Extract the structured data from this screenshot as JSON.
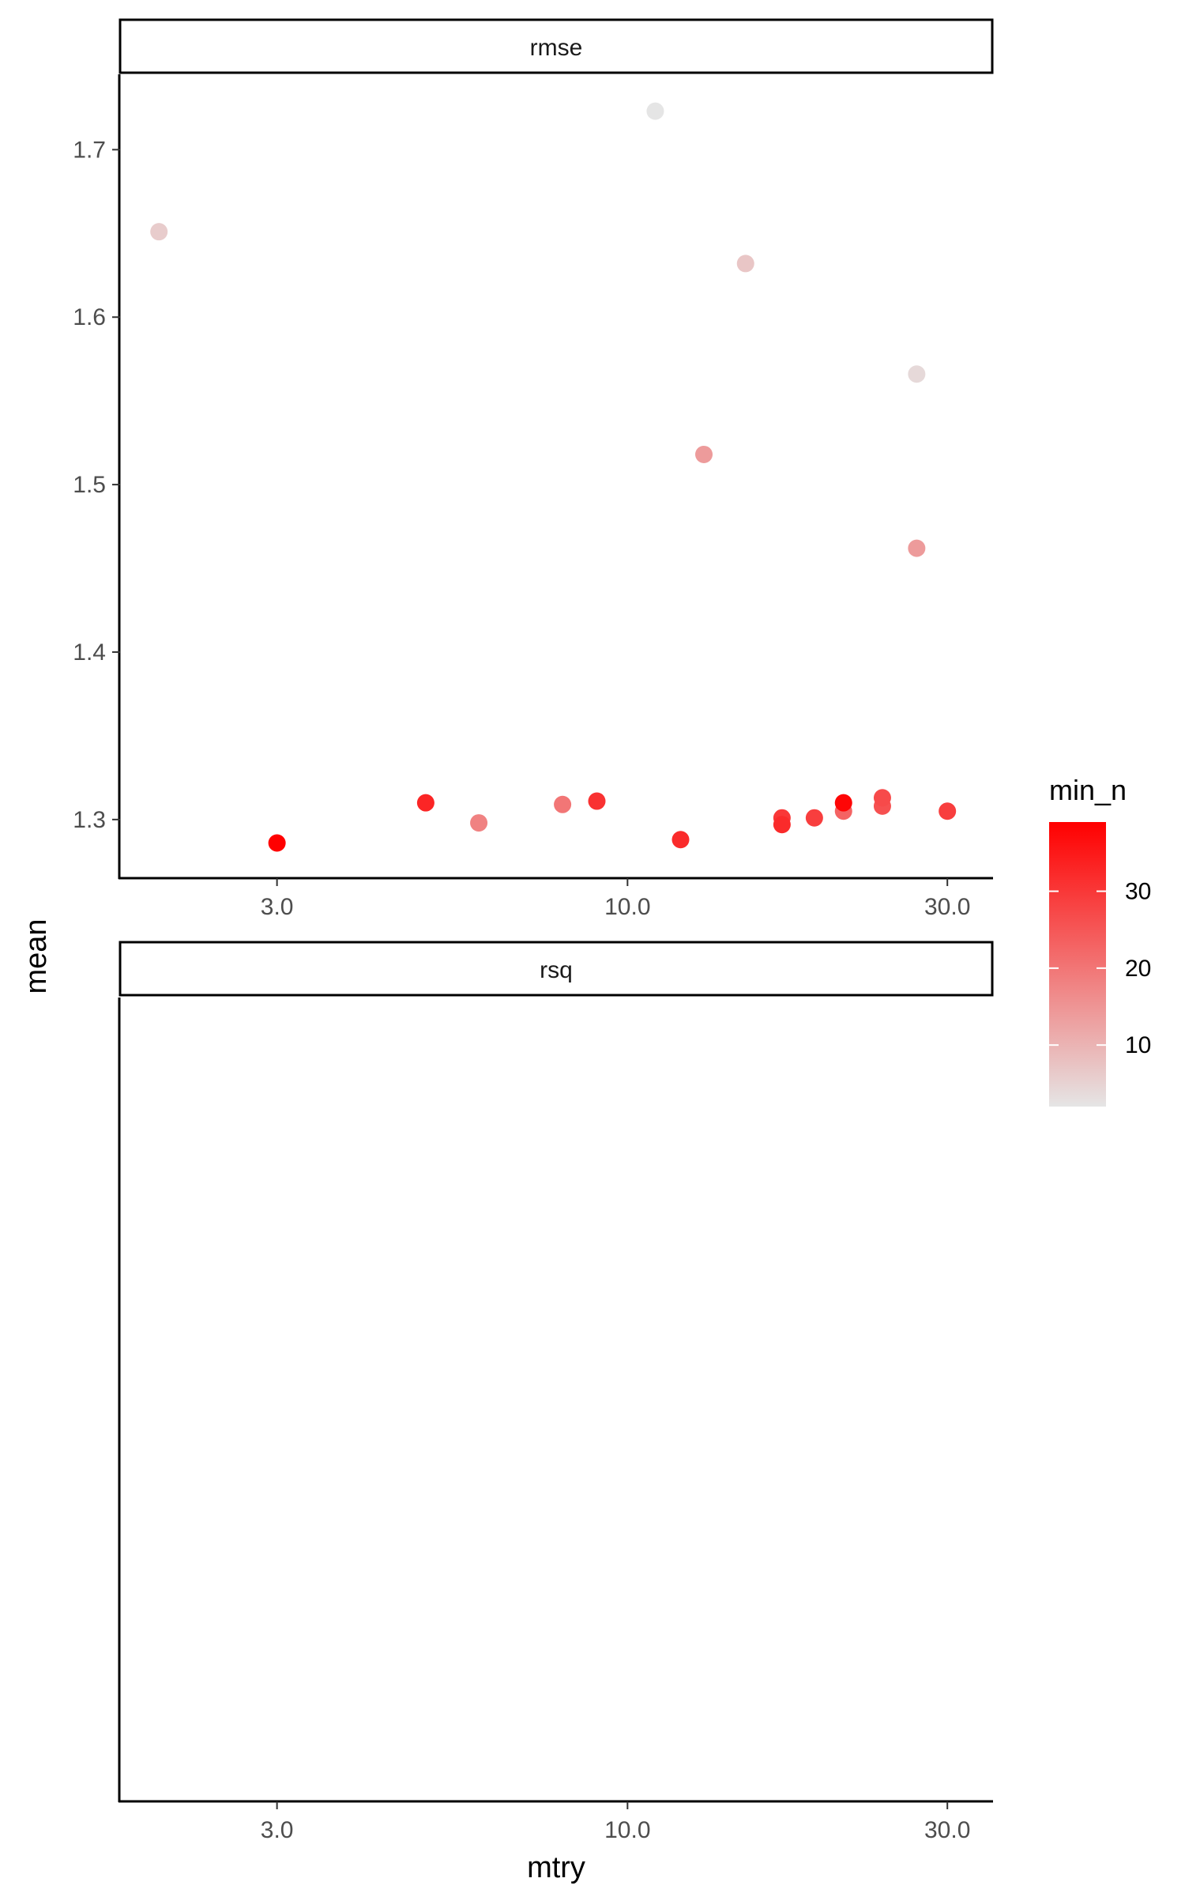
{
  "chart_data": {
    "type": "scatter",
    "x_scale": "log10",
    "xlabel": "mtry",
    "ylabel": "mean",
    "x_ticks": [
      3,
      10,
      30
    ],
    "x_tick_labels": [
      "3.0",
      "10.0",
      "30.0"
    ],
    "xlim": [
      1.75,
      35
    ],
    "grid": false,
    "legend": {
      "title": "min_n",
      "position": "right",
      "type": "colorbar",
      "ticks": [
        10,
        20,
        30
      ],
      "tick_labels": [
        "10",
        "20",
        "30"
      ],
      "range": [
        2,
        39
      ],
      "low_color": "#E5E5E5",
      "high_color": "#FF0000"
    },
    "panels": [
      {
        "strip": "rmse",
        "y_ticks": [
          1.3,
          1.4,
          1.5,
          1.6,
          1.7
        ],
        "y_tick_labels": [
          "1.3",
          "1.4",
          "1.5",
          "1.6",
          "1.7"
        ],
        "ylim": [
          1.265,
          1.745
        ],
        "points": [
          {
            "mtry": 2,
            "mean": 1.651,
            "min_n": 6
          },
          {
            "mtry": 3,
            "mean": 1.286,
            "min_n": 39
          },
          {
            "mtry": 5,
            "mean": 1.31,
            "min_n": 33
          },
          {
            "mtry": 6,
            "mean": 1.298,
            "min_n": 18
          },
          {
            "mtry": 8,
            "mean": 1.309,
            "min_n": 20
          },
          {
            "mtry": 9,
            "mean": 1.311,
            "min_n": 31
          },
          {
            "mtry": 11,
            "mean": 1.723,
            "min_n": 2
          },
          {
            "mtry": 12,
            "mean": 1.288,
            "min_n": 32
          },
          {
            "mtry": 13,
            "mean": 1.518,
            "min_n": 14
          },
          {
            "mtry": 15,
            "mean": 1.632,
            "min_n": 7
          },
          {
            "mtry": 17,
            "mean": 1.301,
            "min_n": 30
          },
          {
            "mtry": 17,
            "mean": 1.297,
            "min_n": 32
          },
          {
            "mtry": 19,
            "mean": 1.301,
            "min_n": 29
          },
          {
            "mtry": 21,
            "mean": 1.305,
            "min_n": 23
          },
          {
            "mtry": 21,
            "mean": 1.31,
            "min_n": 38
          },
          {
            "mtry": 24,
            "mean": 1.308,
            "min_n": 26
          },
          {
            "mtry": 24,
            "mean": 1.313,
            "min_n": 27
          },
          {
            "mtry": 27,
            "mean": 1.566,
            "min_n": 4
          },
          {
            "mtry": 27,
            "mean": 1.462,
            "min_n": 14
          },
          {
            "mtry": 30,
            "mean": 1.305,
            "min_n": 29
          }
        ]
      },
      {
        "strip": "rsq",
        "y_ticks": [],
        "y_tick_labels": [],
        "points": []
      }
    ]
  }
}
